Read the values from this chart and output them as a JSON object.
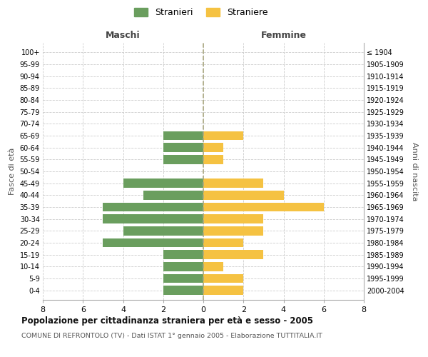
{
  "age_groups": [
    "100+",
    "95-99",
    "90-94",
    "85-89",
    "80-84",
    "75-79",
    "70-74",
    "65-69",
    "60-64",
    "55-59",
    "50-54",
    "45-49",
    "40-44",
    "35-39",
    "30-34",
    "25-29",
    "20-24",
    "15-19",
    "10-14",
    "5-9",
    "0-4"
  ],
  "birth_years": [
    "≤ 1904",
    "1905-1909",
    "1910-1914",
    "1915-1919",
    "1920-1924",
    "1925-1929",
    "1930-1934",
    "1935-1939",
    "1940-1944",
    "1945-1949",
    "1950-1954",
    "1955-1959",
    "1960-1964",
    "1965-1969",
    "1970-1974",
    "1975-1979",
    "1980-1984",
    "1985-1989",
    "1990-1994",
    "1995-1999",
    "2000-2004"
  ],
  "maschi": [
    0,
    0,
    0,
    0,
    0,
    0,
    0,
    2,
    2,
    2,
    0,
    4,
    3,
    5,
    5,
    4,
    5,
    2,
    2,
    2,
    2
  ],
  "femmine": [
    0,
    0,
    0,
    0,
    0,
    0,
    0,
    2,
    1,
    1,
    0,
    3,
    4,
    6,
    3,
    3,
    2,
    3,
    1,
    2,
    2
  ],
  "color_maschi": "#6a9e5e",
  "color_femmine": "#f5c242",
  "title": "Popolazione per cittadinanza straniera per età e sesso - 2005",
  "subtitle": "COMUNE DI REFRONTOLO (TV) - Dati ISTAT 1° gennaio 2005 - Elaborazione TUTTITALIA.IT",
  "ylabel_left": "Fasce di età",
  "ylabel_right": "Anni di nascita",
  "xlabel_left": "Maschi",
  "xlabel_right": "Femmine",
  "legend_maschi": "Stranieri",
  "legend_femmine": "Straniere",
  "xlim": 8,
  "background_color": "#ffffff",
  "grid_color": "#cccccc",
  "center_line_color": "#aaa880"
}
